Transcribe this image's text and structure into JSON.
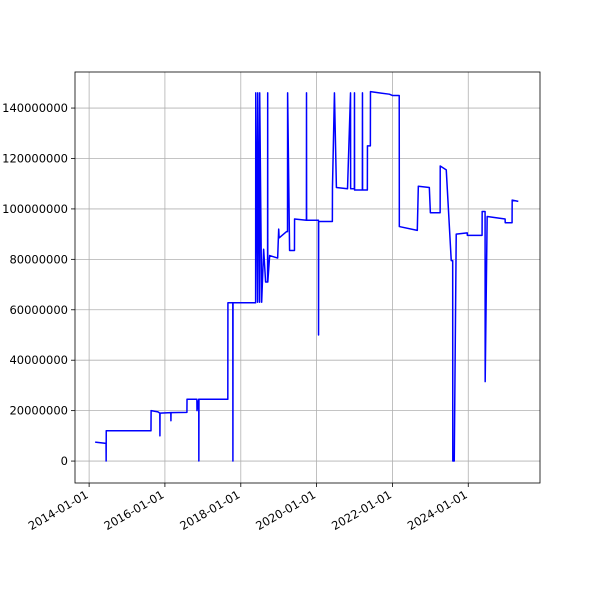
{
  "chart_data": {
    "type": "line",
    "grid": true,
    "x": [
      "2014-02-28",
      "2014-06-13",
      "2014-06-14",
      "2014-06-15",
      "2015-08-20",
      "2015-08-21",
      "2015-10-26",
      "2015-11-13",
      "2015-11-14",
      "2015-11-15",
      "2016-02-27",
      "2016-02-28",
      "2016-02-29",
      "2016-07-31",
      "2016-08-01",
      "2016-11-04",
      "2016-11-05",
      "2016-11-22",
      "2016-11-23",
      "2016-11-24",
      "2017-08-29",
      "2017-08-30",
      "2017-10-16",
      "2017-10-17",
      "2017-10-18",
      "2018-05-24",
      "2018-05-25",
      "2018-06-12",
      "2018-06-13",
      "2018-07-01",
      "2018-07-02",
      "2018-07-21",
      "2018-08-09",
      "2018-08-28",
      "2018-09-16",
      "2018-09-17",
      "2018-09-18",
      "2018-10-06",
      "2018-12-22",
      "2019-01-01",
      "2019-01-05",
      "2019-03-18",
      "2019-03-27",
      "2019-03-28",
      "2019-04-16",
      "2019-06-02",
      "2019-06-03",
      "2019-09-25",
      "2019-09-26",
      "2019-09-27",
      "2020-01-19",
      "2020-01-20",
      "2020-01-21",
      "2020-06-01",
      "2020-06-02",
      "2020-06-21",
      "2020-07-10",
      "2020-10-25",
      "2020-11-23",
      "2020-11-24",
      "2020-12-30",
      "2020-12-31",
      "2021-01-01",
      "2021-03-17",
      "2021-03-18",
      "2021-03-19",
      "2021-05-04",
      "2021-05-05",
      "2021-06-02",
      "2021-06-03",
      "2021-12-02",
      "2021-12-31",
      "2022-03-07",
      "2022-03-08",
      "2022-08-28",
      "2022-09-07",
      "2022-12-22",
      "2023-01-01",
      "2023-04-05",
      "2023-04-06",
      "2023-06-03",
      "2023-07-21",
      "2023-08-04",
      "2023-08-05",
      "2023-08-19",
      "2023-09-07",
      "2023-12-22",
      "2023-12-23",
      "2024-05-13",
      "2024-05-14",
      "2024-06-11",
      "2024-06-12",
      "2024-07-01",
      "2024-12-21",
      "2024-12-22",
      "2025-02-26",
      "2025-02-27",
      "2025-04-27"
    ],
    "series": [
      {
        "color": "#0000ff",
        "values": [
          7500000,
          7000000,
          0,
          12000000,
          12000000,
          20000000,
          19500000,
          19000000,
          10000000,
          19000000,
          19200000,
          16000000,
          19200000,
          19300000,
          24500000,
          24500000,
          20000000,
          24500000,
          0,
          24500000,
          24500000,
          62800000,
          62800000,
          0,
          62800000,
          62800000,
          146000000,
          63000000,
          146000000,
          63000000,
          146000000,
          63000000,
          84000000,
          71000000,
          71000000,
          146000000,
          71000000,
          81500000,
          80500000,
          92000000,
          88500000,
          91000000,
          91000000,
          146000000,
          83500000,
          83500000,
          96000000,
          95500000,
          146000000,
          95500000,
          95500000,
          50000000,
          95000000,
          95000000,
          108500000,
          146000000,
          108500000,
          108000000,
          146000000,
          108000000,
          108000000,
          146000000,
          107500000,
          107500000,
          146000000,
          107500000,
          107500000,
          125000000,
          125000000,
          146500000,
          145500000,
          145000000,
          145000000,
          93000000,
          91500000,
          109000000,
          108500000,
          98500000,
          98500000,
          117000000,
          115500000,
          79500000,
          79500000,
          0,
          0,
          90000000,
          90500000,
          89500000,
          89500000,
          99000000,
          99000000,
          31500000,
          97000000,
          96000000,
          94500000,
          94500000,
          103500000,
          103000000
        ]
      }
    ],
    "xlim": [
      "2013-08-18",
      "2025-11-22"
    ],
    "xticks": [
      "2014-01-01",
      "2016-01-01",
      "2018-01-01",
      "2020-01-01",
      "2022-01-01",
      "2024-01-01"
    ],
    "ylim": [
      -8700000,
      154300000
    ],
    "yticks": [
      0,
      20000000,
      40000000,
      60000000,
      80000000,
      100000000,
      120000000,
      140000000
    ]
  }
}
